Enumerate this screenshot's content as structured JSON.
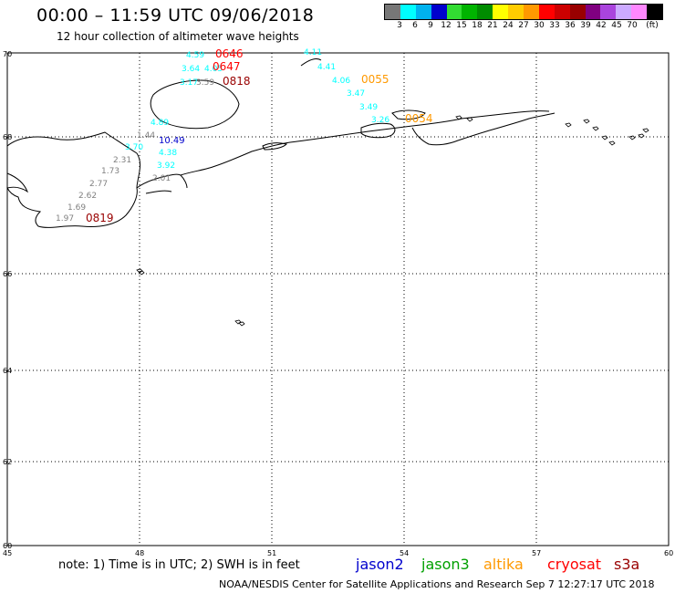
{
  "header": {
    "title": "00:00 – 11:59 UTC 09/06/2018",
    "subtitle": "12 hour collection of altimeter wave heights"
  },
  "scale": {
    "colors": [
      "#777777",
      "#00ffff",
      "#00b2ee",
      "#0000cd",
      "#32dc32",
      "#00b400",
      "#008c00",
      "#ffff00",
      "#ffcc00",
      "#ff9900",
      "#ff0000",
      "#cc0000",
      "#990000",
      "#800080",
      "#aa44dd",
      "#ccaaff",
      "#ff88ff",
      "#000000"
    ],
    "labels": [
      "3",
      "6",
      "9",
      "12",
      "15",
      "18",
      "21",
      "24",
      "27",
      "30",
      "33",
      "36",
      "39",
      "42",
      "45",
      "70",
      "(ft)"
    ]
  },
  "map": {
    "lat_labels": [
      "70",
      "68",
      "66",
      "64",
      "62",
      "60"
    ],
    "lon_labels": [
      "45",
      "48",
      "51",
      "54",
      "57",
      "60"
    ]
  },
  "observations": [
    {
      "text": "4.59",
      "color": "#00ffff"
    },
    {
      "text": "0646",
      "color": "#ff0000"
    },
    {
      "text": "3.64",
      "color": "#00ffff"
    },
    {
      "text": "4.05",
      "color": "#00ffff"
    },
    {
      "text": "0647",
      "color": "#ff0000"
    },
    {
      "text": "3.17",
      "color": "#00ffff"
    },
    {
      "text": "3.59",
      "color": "#808080"
    },
    {
      "text": "0818",
      "color": "#990000"
    },
    {
      "text": "4.11",
      "color": "#00ffff"
    },
    {
      "text": "4.41",
      "color": "#00ffff"
    },
    {
      "text": "4.06",
      "color": "#00ffff"
    },
    {
      "text": "0055",
      "color": "#ff9900"
    },
    {
      "text": "3.47",
      "color": "#00ffff"
    },
    {
      "text": "3.49",
      "color": "#00ffff"
    },
    {
      "text": "3.26",
      "color": "#00ffff"
    },
    {
      "text": "0054",
      "color": "#ff9900"
    },
    {
      "text": "4.89",
      "color": "#00ffff"
    },
    {
      "text": "1.44",
      "color": "#808080"
    },
    {
      "text": "10.49",
      "color": "#0000cd"
    },
    {
      "text": "3.70",
      "color": "#00ffff"
    },
    {
      "text": "4.38",
      "color": "#00ffff"
    },
    {
      "text": "2.31",
      "color": "#808080"
    },
    {
      "text": "3.92",
      "color": "#00ffff"
    },
    {
      "text": "1.73",
      "color": "#808080"
    },
    {
      "text": "2.01",
      "color": "#808080"
    },
    {
      "text": "2.77",
      "color": "#808080"
    },
    {
      "text": "2.62",
      "color": "#808080"
    },
    {
      "text": "1.69",
      "color": "#808080"
    },
    {
      "text": "1.97",
      "color": "#808080"
    },
    {
      "text": "0819",
      "color": "#990000"
    }
  ],
  "note": "note:  1) Time is in UTC;  2) SWH is in feet",
  "legend": [
    {
      "name": "jason2",
      "color": "#0000cd"
    },
    {
      "name": "jason3",
      "color": "#00a000"
    },
    {
      "name": "altika",
      "color": "#ff9900"
    },
    {
      "name": "cryosat",
      "color": "#ff0000"
    },
    {
      "name": "s3a",
      "color": "#990000"
    }
  ],
  "footer": "NOAA/NESDIS Center for Satellite Applications and Research    Sep  7 12:27:17 UTC 2018"
}
